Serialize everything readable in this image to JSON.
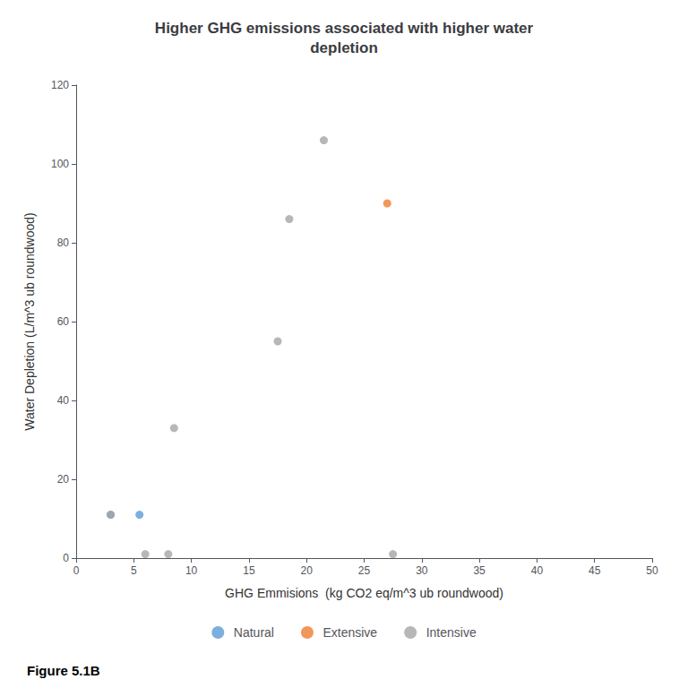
{
  "chart_data": {
    "type": "scatter",
    "title": "Higher GHG emissions associated with higher water\ndepletion",
    "xlabel": "GHG Emmisions  (kg CO2 eq/m^3 ub roundwood)",
    "ylabel": "Water Depletion (L/m^3 ub roundwood)",
    "annotations": [
      "Figure 5.1B"
    ],
    "xlim": [
      0,
      50
    ],
    "ylim": [
      0,
      120
    ],
    "xticks": [
      0,
      5,
      10,
      15,
      20,
      25,
      30,
      35,
      40,
      45,
      50
    ],
    "yticks": [
      0,
      20,
      40,
      60,
      80,
      100,
      120
    ],
    "grid": false,
    "legend": "bottom",
    "series": [
      {
        "name": "Natural",
        "color": "#5B9BD5",
        "values": [
          [
            3,
            11
          ],
          [
            5.5,
            11
          ]
        ]
      },
      {
        "name": "Extensive",
        "color": "#ED7D31",
        "values": [
          [
            27,
            90
          ]
        ]
      },
      {
        "name": "Intensive",
        "color": "#A5A5A5",
        "values": [
          [
            3,
            11
          ],
          [
            6,
            1
          ],
          [
            8,
            1
          ],
          [
            8.5,
            33
          ],
          [
            17.5,
            55
          ],
          [
            18.5,
            86
          ],
          [
            21.5,
            106
          ],
          [
            27.5,
            1
          ]
        ]
      }
    ]
  }
}
